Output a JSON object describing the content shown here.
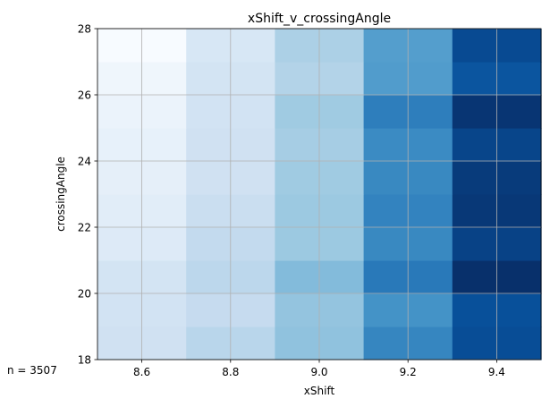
{
  "chart_data": {
    "type": "heatmap",
    "title": "xShift_v_crossingAngle",
    "xlabel": "xShift",
    "ylabel": "crossingAngle",
    "xlim": [
      8.5,
      9.5
    ],
    "ylim": [
      18,
      28
    ],
    "x_edges": [
      8.5,
      8.7,
      8.9,
      9.1,
      9.3,
      9.5
    ],
    "y_edges": [
      18,
      19,
      20,
      21,
      22,
      23,
      24,
      25,
      26,
      27,
      28
    ],
    "x_ticks": [
      8.6,
      8.8,
      9.0,
      9.2,
      9.4
    ],
    "x_tick_labels": [
      "8.6",
      "8.8",
      "9.0",
      "9.2",
      "9.4"
    ],
    "y_ticks": [
      18,
      20,
      22,
      24,
      26,
      28
    ],
    "y_tick_labels": [
      "18",
      "20",
      "22",
      "24",
      "26",
      "28"
    ],
    "colormap": "Blues",
    "grid": true,
    "values": [
      [
        0.2,
        0.29,
        0.41,
        0.67,
        0.89
      ],
      [
        0.19,
        0.25,
        0.4,
        0.62,
        0.88
      ],
      [
        0.18,
        0.28,
        0.44,
        0.72,
        1.0
      ],
      [
        0.13,
        0.26,
        0.38,
        0.66,
        0.93
      ],
      [
        0.11,
        0.23,
        0.38,
        0.68,
        0.97
      ],
      [
        0.09,
        0.2,
        0.37,
        0.66,
        0.96
      ],
      [
        0.08,
        0.2,
        0.35,
        0.65,
        0.92
      ],
      [
        0.06,
        0.19,
        0.37,
        0.7,
        0.98
      ],
      [
        0.04,
        0.18,
        0.31,
        0.58,
        0.86
      ],
      [
        0.0,
        0.16,
        0.33,
        0.57,
        0.9
      ]
    ]
  },
  "footer_note": "n = 3507"
}
